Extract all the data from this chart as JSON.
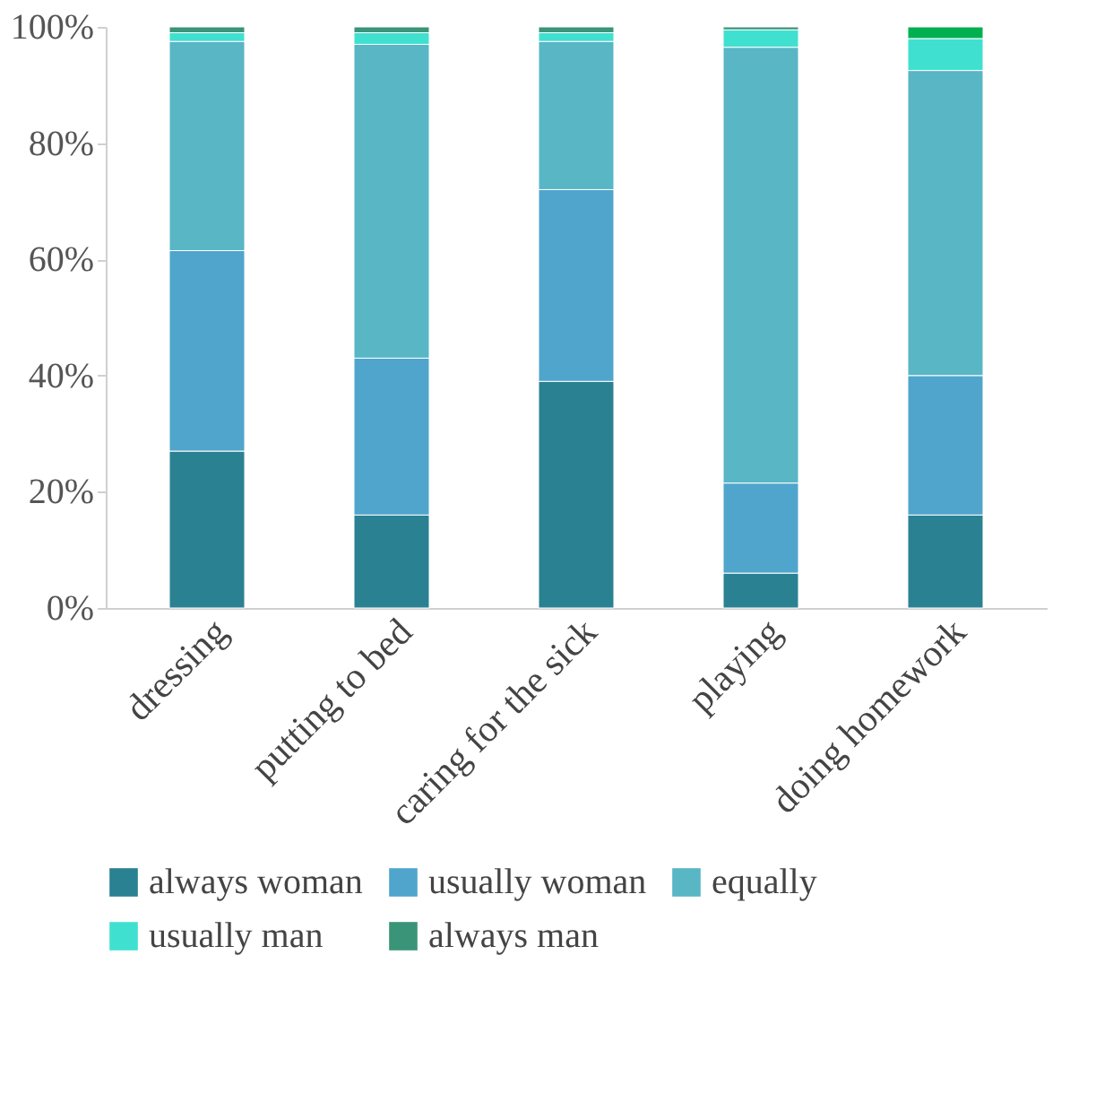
{
  "chart_data": {
    "type": "bar",
    "stacked": true,
    "categories": [
      "dressing",
      "putting to bed",
      "caring for the sick",
      "playing",
      "doing homework"
    ],
    "series": [
      {
        "name": "always woman",
        "color": "#2a8192",
        "values": [
          27,
          16,
          39,
          6,
          16
        ]
      },
      {
        "name": "usually woman",
        "color": "#50a5cd",
        "values": [
          34.5,
          27,
          33,
          15.5,
          24
        ]
      },
      {
        "name": "equally",
        "color": "#58b6c5",
        "values": [
          36,
          54,
          25.5,
          75,
          52.5
        ]
      },
      {
        "name": "usually man",
        "color": "#40e0d0",
        "values": [
          1.5,
          2,
          1.5,
          3,
          5.5
        ]
      },
      {
        "name": "always man",
        "color": "#3a9478",
        "colors": [
          "#3a9478",
          "#3a9478",
          "#3a9478",
          "#3a9478",
          "#00b050"
        ],
        "values": [
          1,
          1,
          1,
          0.5,
          2
        ]
      }
    ],
    "ylim": [
      0,
      100
    ],
    "yticks": [
      {
        "value": 0,
        "label": "0%"
      },
      {
        "value": 20,
        "label": "20%"
      },
      {
        "value": 40,
        "label": "40%"
      },
      {
        "value": 60,
        "label": "60%"
      },
      {
        "value": 80,
        "label": "80%"
      },
      {
        "value": 100,
        "label": "100%"
      }
    ],
    "grid": false,
    "legend": "bottom"
  }
}
